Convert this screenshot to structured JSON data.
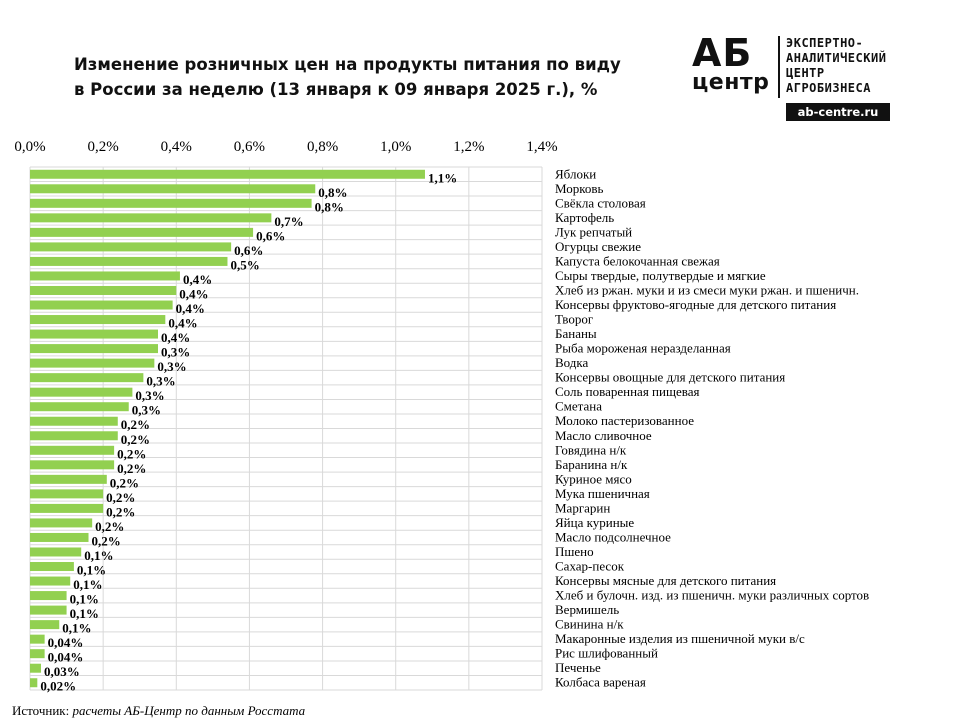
{
  "header": {
    "title_line1": "Изменение розничных цен на продукты питания по виду",
    "title_line2": "в России за неделю (13 января к 09 января 2025 г.), %"
  },
  "logo": {
    "big": "АБ",
    "sub": "центр",
    "line1": "ЭКСПЕРТНО-",
    "line2": "АНАЛИТИЧЕСКИЙ",
    "line3": "ЦЕНТР",
    "line4": "АГРОБИЗНЕСА",
    "url": "ab-centre.ru"
  },
  "source": {
    "label": "Источник:",
    "text": "расчеты АБ-Центр по данным Росстата"
  },
  "chart_data": {
    "type": "bar",
    "orientation": "horizontal",
    "xlim": [
      0,
      1.4
    ],
    "x_ticks": [
      "0,0%",
      "0,2%",
      "0,4%",
      "0,6%",
      "0,8%",
      "1,0%",
      "1,2%",
      "1,4%"
    ],
    "tick_values": [
      0,
      0.2,
      0.4,
      0.6,
      0.8,
      1.0,
      1.2,
      1.4
    ],
    "grid": true,
    "bar_color": "#92d050",
    "categories": [
      "Яблоки",
      "Морковь",
      "Свёкла столовая",
      "Картофель",
      "Лук репчатый",
      "Огурцы свежие",
      "Капуста белокочанная свежая",
      "Сыры твердые, полутвердые и мягкие",
      "Хлеб из ржан. муки и из смеси муки ржан. и пшеничн.",
      "Консервы фруктово-ягодные для детского питания",
      "Творог",
      "Бананы",
      "Рыба мороженая неразделанная",
      "Водка",
      "Консервы овощные для детского питания",
      "Соль поваренная пищевая",
      "Сметана",
      "Молоко пастеризованное",
      "Масло сливочное",
      "Говядина н/к",
      "Баранина н/к",
      "Куриное мясо",
      "Мука пшеничная",
      "Маргарин",
      "Яйца куриные",
      "Масло подсолнечное",
      "Пшено",
      "Сахар-песок",
      "Консервы мясные для детского питания",
      "Хлеб и булочн. изд. из пшеничн. муки различных сортов",
      "Вермишель",
      "Свинина н/к",
      "Макаронные изделия из пшеничной муки в/с",
      "Рис шлифованный",
      "Печенье",
      "Колбаса вареная"
    ],
    "values": [
      1.08,
      0.78,
      0.77,
      0.66,
      0.61,
      0.55,
      0.54,
      0.41,
      0.4,
      0.39,
      0.37,
      0.35,
      0.35,
      0.34,
      0.31,
      0.28,
      0.27,
      0.24,
      0.24,
      0.23,
      0.23,
      0.21,
      0.2,
      0.2,
      0.17,
      0.16,
      0.14,
      0.12,
      0.11,
      0.1,
      0.1,
      0.08,
      0.04,
      0.04,
      0.03,
      0.02
    ],
    "data_labels": [
      "1,1%",
      "0,8%",
      "0,8%",
      "0,7%",
      "0,6%",
      "0,6%",
      "0,5%",
      "0,4%",
      "0,4%",
      "0,4%",
      "0,4%",
      "0,4%",
      "0,3%",
      "0,3%",
      "0,3%",
      "0,3%",
      "0,3%",
      "0,2%",
      "0,2%",
      "0,2%",
      "0,2%",
      "0,2%",
      "0,2%",
      "0,2%",
      "0,2%",
      "0,2%",
      "0,1%",
      "0,1%",
      "0,1%",
      "0,1%",
      "0,1%",
      "0,1%",
      "0,04%",
      "0,04%",
      "0,03%",
      "0,02%"
    ]
  }
}
